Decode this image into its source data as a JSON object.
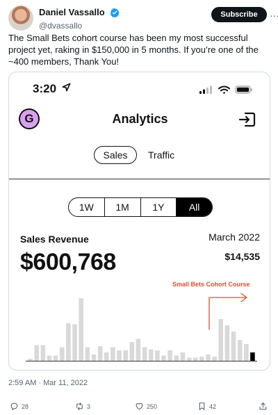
{
  "tweet": {
    "author_name": "Daniel Vassallo",
    "author_handle": "@dvassallo",
    "subscribe_label": "Subscribe",
    "more_label": "···",
    "text": "The Small Bets cohort course has been my most successful project yet, raking in $150,000 in 5 months. If you’re one of the ~400 members, Thank You!",
    "timestamp": "2:59 AM · Mar 11, 2022",
    "stats": {
      "replies": "28",
      "retweets": "3",
      "likes": "250",
      "bookmarks": "42"
    },
    "colors": {
      "accent": "#1d9bf0",
      "muted": "#536471"
    }
  },
  "phone": {
    "time": "3:20",
    "app_logo_letter": "G",
    "title": "Analytics",
    "tabs": [
      {
        "label": "Sales",
        "selected": true
      },
      {
        "label": "Traffic",
        "selected": false
      }
    ],
    "ranges": [
      {
        "label": "1W",
        "active": false
      },
      {
        "label": "1M",
        "active": false
      },
      {
        "label": "1Y",
        "active": false
      },
      {
        "label": "All",
        "active": true
      }
    ],
    "revenue_label": "Sales Revenue",
    "revenue_total": "$600,768",
    "month_label": "March 2022",
    "month_value": "$14,535",
    "annotation": "Small Bets Cohort Course",
    "colors": {
      "logo": "#d9a0f0",
      "annotation": "#e44b2d",
      "bar": "#d9d9d9",
      "bar_current": "#000000"
    }
  },
  "chart_data": {
    "type": "bar",
    "values": [
      2,
      15,
      15,
      5,
      5,
      13,
      36,
      35,
      60,
      13,
      6,
      14,
      8,
      13,
      10,
      10,
      18,
      21,
      13,
      11,
      10,
      5,
      10,
      5,
      8,
      3,
      3,
      4,
      6,
      4,
      40,
      34,
      28,
      20,
      16,
      8
    ],
    "current_index": 35
  }
}
